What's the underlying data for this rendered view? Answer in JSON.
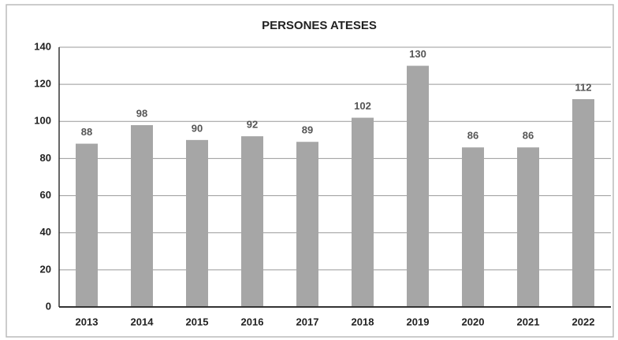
{
  "chart_data": {
    "type": "bar",
    "title": "PERSONES ATESES",
    "categories": [
      "2013",
      "2014",
      "2015",
      "2016",
      "2017",
      "2018",
      "2019",
      "2020",
      "2021",
      "2022"
    ],
    "values": [
      88,
      98,
      90,
      92,
      89,
      102,
      130,
      86,
      86,
      112
    ],
    "color": "#a6a6a6",
    "ylim": [
      0,
      140
    ],
    "yticks": [
      0,
      20,
      40,
      60,
      80,
      100,
      120,
      140
    ],
    "grid": true
  }
}
